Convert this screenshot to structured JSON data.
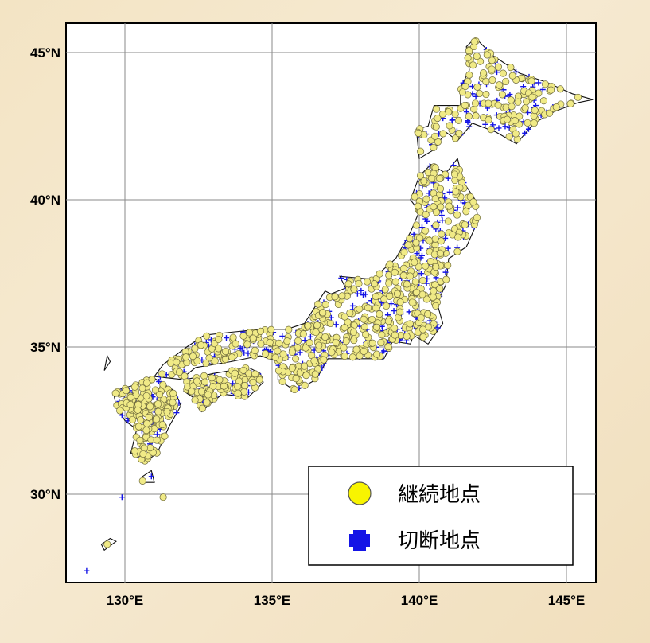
{
  "map": {
    "lon_range": [
      128,
      146
    ],
    "lat_range": [
      27,
      46
    ],
    "grid": true,
    "lat_ticks": [
      {
        "value": 45,
        "label": "45°N"
      },
      {
        "value": 40,
        "label": "40°N"
      },
      {
        "value": 35,
        "label": "35°N"
      },
      {
        "value": 30,
        "label": "30°N"
      }
    ],
    "lon_ticks": [
      {
        "value": 130,
        "label": "130°E"
      },
      {
        "value": 135,
        "label": "135°E"
      },
      {
        "value": 140,
        "label": "140°E"
      },
      {
        "value": 145,
        "label": "145°E"
      }
    ],
    "colors": {
      "continuing_fill": "#f0ea86",
      "continuing_stroke": "#6e6a3c",
      "discontinued": "#1414e6",
      "coast": "#111111",
      "grid": "#8a8a8a"
    },
    "legend": {
      "position": "bottom-right",
      "items": [
        {
          "symbol": "circle-icon",
          "label": "継続地点"
        },
        {
          "symbol": "plus-icon",
          "label": "切断地点"
        }
      ]
    }
  }
}
